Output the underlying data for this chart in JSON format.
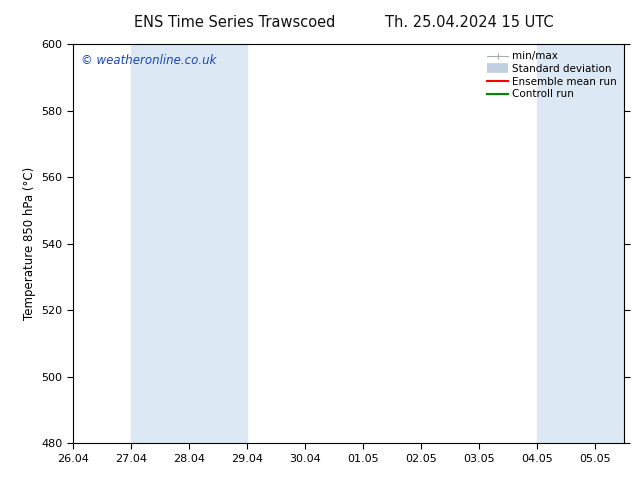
{
  "title_left": "ENS Time Series Trawscoed",
  "title_right": "Th. 25.04.2024 15 UTC",
  "ylabel": "Temperature 850 hPa (°C)",
  "watermark": "© weatheronline.co.uk",
  "ylim": [
    480,
    600
  ],
  "yticks": [
    480,
    500,
    520,
    540,
    560,
    580,
    600
  ],
  "xtick_labels": [
    "26.04",
    "27.04",
    "28.04",
    "29.04",
    "30.04",
    "01.05",
    "02.05",
    "03.05",
    "04.05",
    "05.05"
  ],
  "x_values": [
    0,
    1,
    2,
    3,
    4,
    5,
    6,
    7,
    8,
    9
  ],
  "xlim_min": 0,
  "xlim_max": 9.5,
  "shaded_bands": [
    {
      "xmin": 1.0,
      "xmax": 1.5,
      "color": "#dce9f5"
    },
    {
      "xmin": 1.5,
      "xmax": 3.0,
      "color": "#dce9f5"
    },
    {
      "xmin": 8.0,
      "xmax": 8.5,
      "color": "#dce9f5"
    },
    {
      "xmin": 8.5,
      "xmax": 9.5,
      "color": "#dce9f5"
    }
  ],
  "legend_items": [
    {
      "label": "min/max",
      "color": "#aaaaaa",
      "lw": 1,
      "style": "minmax"
    },
    {
      "label": "Standard deviation",
      "color": "#c8d8e8",
      "lw": 6,
      "style": "std"
    },
    {
      "label": "Ensemble mean run",
      "color": "#ff0000",
      "lw": 1.5,
      "style": "line"
    },
    {
      "label": "Controll run",
      "color": "#00aa00",
      "lw": 1.5,
      "style": "line"
    }
  ],
  "background_color": "#ffffff",
  "plot_bg_color": "#ffffff",
  "title_fontsize": 10.5,
  "label_fontsize": 8.5,
  "tick_fontsize": 8,
  "watermark_color": "#1a44bb",
  "watermark_fontsize": 8.5,
  "legend_fontsize": 7.5
}
